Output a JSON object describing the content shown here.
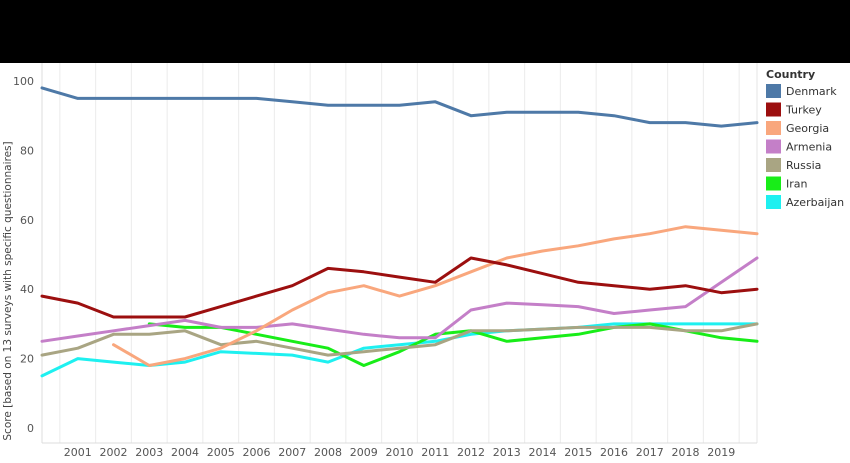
{
  "chart_data": {
    "type": "line",
    "title": "",
    "xlabel": "",
    "ylabel": "Score [based on 13 surveys with specific questionnaires]",
    "x": [
      2000,
      2001,
      2002,
      2003,
      2004,
      2005,
      2006,
      2007,
      2008,
      2009,
      2010,
      2011,
      2012,
      2013,
      2014,
      2015,
      2016,
      2017,
      2018,
      2019,
      2020
    ],
    "x_tick_labels": [
      "2001",
      "2002",
      "2003",
      "2004",
      "2005",
      "2006",
      "2007",
      "2008",
      "2009",
      "2010",
      "2011",
      "2012",
      "2013",
      "2014",
      "2015",
      "2016",
      "2017",
      "2018",
      "2019"
    ],
    "y_ticks": [
      0,
      20,
      40,
      60,
      80,
      100
    ],
    "ylim": [
      0,
      100
    ],
    "grid": "vertical",
    "legend": {
      "title": "Country",
      "position": "right"
    },
    "series": [
      {
        "name": "Denmark",
        "color": "#4e79a7",
        "values": [
          98,
          95,
          95,
          95,
          95,
          95,
          95,
          94,
          93,
          93,
          93,
          94,
          90,
          91,
          91,
          91,
          90,
          88,
          88,
          87,
          88
        ]
      },
      {
        "name": "Turkey",
        "color": "#9c0f0f",
        "values": [
          38,
          36,
          32,
          32,
          32,
          35,
          38,
          41,
          46,
          45,
          43.5,
          42,
          49,
          47,
          44.5,
          42,
          41,
          40,
          41,
          39,
          40
        ]
      },
      {
        "name": "Georgia",
        "color": "#f9a77d",
        "values": [
          null,
          null,
          24,
          18,
          20,
          23,
          28,
          34,
          39,
          41,
          38,
          41,
          45,
          49,
          51,
          52.5,
          54.5,
          56,
          58,
          57,
          56
        ]
      },
      {
        "name": "Armenia",
        "color": "#c47fc8",
        "values": [
          25,
          26.5,
          28,
          29.5,
          31,
          29,
          29,
          30,
          28.5,
          27,
          26,
          26,
          34,
          36,
          35.5,
          35,
          33,
          34,
          35,
          42,
          49
        ]
      },
      {
        "name": "Russia",
        "color": "#a9a583",
        "values": [
          21,
          23,
          27,
          27,
          28,
          24,
          25,
          23,
          21,
          22,
          23,
          24,
          28,
          28,
          28.5,
          29,
          29,
          29,
          28,
          28,
          30
        ]
      },
      {
        "name": "Iran",
        "color": "#18ed18",
        "values": [
          null,
          null,
          null,
          30,
          29,
          29,
          27,
          25,
          23,
          18,
          22,
          27,
          28,
          25,
          26,
          27,
          29,
          30,
          28,
          26,
          25
        ]
      },
      {
        "name": "Azerbaijan",
        "color": "#1ef0f0",
        "values": [
          15,
          20,
          19,
          18,
          19,
          22,
          21.5,
          21,
          19,
          23,
          24,
          25,
          27,
          28,
          28.5,
          29,
          30,
          30,
          30,
          30,
          30
        ]
      }
    ]
  }
}
